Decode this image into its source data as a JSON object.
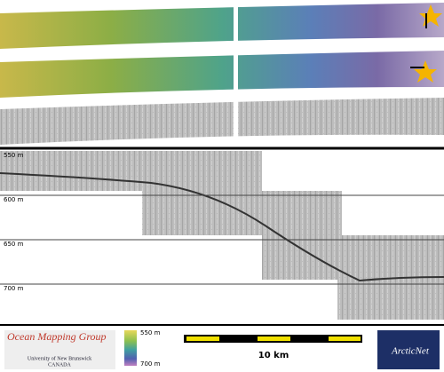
{
  "depth_labels": [
    "550 m",
    "600 m",
    "650 m",
    "700 m"
  ],
  "footer": {
    "group": "Ocean Mapping Group",
    "university": "University of New Brunswick",
    "country": "CANADA",
    "colorbar_top": "550 m",
    "colorbar_bottom": "700 m",
    "scale": "10 km",
    "logo": "ArcticNet"
  }
}
